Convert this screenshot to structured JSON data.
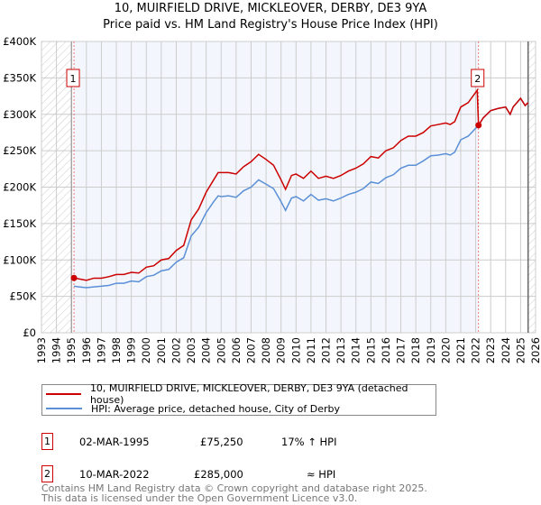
{
  "chart_data": {
    "type": "line",
    "title": "10, MUIRFIELD DRIVE, MICKLEOVER, DERBY, DE3 9YA",
    "subtitle": "Price paid vs. HM Land Registry's House Price Index (HPI)",
    "xlim": [
      1993,
      2026
    ],
    "ylim": [
      0,
      400000
    ],
    "x_ticks": [
      "1993",
      "1994",
      "1995",
      "1996",
      "1997",
      "1998",
      "1999",
      "2000",
      "2001",
      "2002",
      "2003",
      "2004",
      "2005",
      "2006",
      "2007",
      "2008",
      "2009",
      "2010",
      "2011",
      "2012",
      "2013",
      "2014",
      "2015",
      "2016",
      "2017",
      "2018",
      "2019",
      "2020",
      "2021",
      "2022",
      "2023",
      "2024",
      "2025",
      "2026"
    ],
    "y_ticks": [
      {
        "v": 0,
        "label": "£0"
      },
      {
        "v": 50000,
        "label": "£50K"
      },
      {
        "v": 100000,
        "label": "£100K"
      },
      {
        "v": 150000,
        "label": "£150K"
      },
      {
        "v": 200000,
        "label": "£200K"
      },
      {
        "v": 250000,
        "label": "£250K"
      },
      {
        "v": 300000,
        "label": "£300K"
      },
      {
        "v": 350000,
        "label": "£350K"
      },
      {
        "v": 400000,
        "label": "£400K"
      }
    ],
    "grid": true,
    "series": [
      {
        "name": "10, MUIRFIELD DRIVE, MICKLEOVER, DERBY, DE3 9YA (detached house)",
        "color": "#cc0000",
        "x": [
          1995.17,
          1995.5,
          1996,
          1996.5,
          1997,
          1997.5,
          1998,
          1998.5,
          1999,
          1999.5,
          2000,
          2000.5,
          2001,
          2001.5,
          2002,
          2002.5,
          2003,
          2003.5,
          2004,
          2004.5,
          2004.8,
          2005,
          2005.5,
          2006,
          2006.5,
          2007,
          2007.5,
          2008,
          2008.5,
          2009,
          2009.3,
          2009.7,
          2010,
          2010.5,
          2011,
          2011.5,
          2012,
          2012.5,
          2013,
          2013.5,
          2014,
          2014.5,
          2015,
          2015.5,
          2016,
          2016.5,
          2017,
          2017.5,
          2018,
          2018.5,
          2019,
          2019.5,
          2020,
          2020.3,
          2020.6,
          2021,
          2021.5,
          2022.1,
          2022.19,
          2022.5,
          2023,
          2023.5,
          2024,
          2024.3,
          2024.5,
          2025,
          2025.3,
          2025.5
        ],
        "y": [
          75250,
          74000,
          72000,
          75000,
          75000,
          77000,
          80000,
          80000,
          83000,
          82000,
          90000,
          92000,
          100000,
          102000,
          113000,
          120000,
          155000,
          170000,
          193000,
          210000,
          220000,
          220000,
          220000,
          218000,
          228000,
          235000,
          245000,
          238000,
          230000,
          210000,
          197000,
          216000,
          218000,
          212000,
          222000,
          212000,
          215000,
          212000,
          216000,
          222000,
          226000,
          232000,
          242000,
          240000,
          250000,
          254000,
          264000,
          270000,
          270000,
          275000,
          284000,
          286000,
          288000,
          286000,
          290000,
          310000,
          316000,
          333000,
          285000,
          295000,
          305000,
          308000,
          310000,
          300000,
          310000,
          322000,
          312000,
          316000
        ]
      },
      {
        "name": "HPI: Average price, detached house, City of Derby",
        "color": "#5b8fd6",
        "x": [
          1995.17,
          1995.5,
          1996,
          1996.5,
          1997,
          1997.5,
          1998,
          1998.5,
          1999,
          1999.5,
          2000,
          2000.5,
          2001,
          2001.5,
          2002,
          2002.5,
          2003,
          2003.5,
          2004,
          2004.5,
          2004.8,
          2005,
          2005.5,
          2006,
          2006.5,
          2007,
          2007.5,
          2008,
          2008.5,
          2009,
          2009.3,
          2009.7,
          2010,
          2010.5,
          2011,
          2011.5,
          2012,
          2012.5,
          2013,
          2013.5,
          2014,
          2014.5,
          2015,
          2015.5,
          2016,
          2016.5,
          2017,
          2017.5,
          2018,
          2018.5,
          2019,
          2019.5,
          2020,
          2020.3,
          2020.6,
          2021,
          2021.5,
          2022.1,
          2022.19,
          2022.5,
          2023,
          2023.5,
          2024,
          2024.3,
          2024.5,
          2025,
          2025.3,
          2025.5
        ],
        "y": [
          64000,
          63000,
          62000,
          63000,
          64000,
          65000,
          68000,
          68000,
          71000,
          70000,
          77000,
          79000,
          85000,
          87000,
          97000,
          103000,
          133000,
          145000,
          165000,
          180000,
          188000,
          187000,
          188000,
          186000,
          195000,
          200000,
          210000,
          204000,
          198000,
          180000,
          168000,
          185000,
          187000,
          181000,
          190000,
          182000,
          184000,
          181000,
          185000,
          190000,
          193000,
          198000,
          207000,
          205000,
          213000,
          217000,
          226000,
          230000,
          230000,
          236000,
          243000,
          244000,
          246000,
          244000,
          248000,
          265000,
          270000,
          283000,
          285000,
          295000,
          305000,
          308000,
          310000,
          300000,
          310000,
          322000,
          312000,
          316000
        ]
      }
    ],
    "shaded_range": [
      1995.17,
      2022.19
    ],
    "hatched_ranges": [
      [
        1993,
        1995
      ],
      [
        2025.5,
        2026
      ]
    ],
    "annotations": [
      {
        "label": "1",
        "x": 1995.17,
        "y": 75250
      },
      {
        "label": "2",
        "x": 2022.19,
        "y": 285000
      }
    ],
    "legend_position": "bottom"
  },
  "legend": {
    "property": "10, MUIRFIELD DRIVE, MICKLEOVER, DERBY, DE3 9YA (detached house)",
    "hpi": "HPI: Average price, detached house, City of Derby"
  },
  "transactions": [
    {
      "num": "1",
      "date": "02-MAR-1995",
      "price": "£75,250",
      "vs_hpi": "17% ↑ HPI"
    },
    {
      "num": "2",
      "date": "10-MAR-2022",
      "price": "£285,000",
      "vs_hpi": "≈ HPI"
    }
  ],
  "footer": {
    "line1": "Contains HM Land Registry data © Crown copyright and database right 2025.",
    "line2": "This data is licensed under the Open Government Licence v3.0."
  }
}
